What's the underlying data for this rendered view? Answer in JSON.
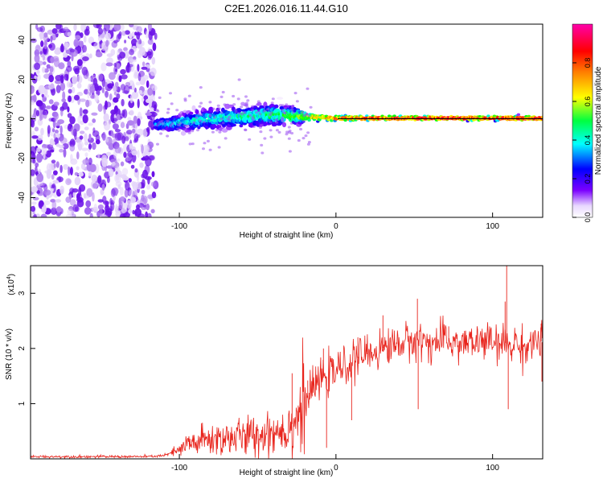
{
  "figure_title": "C2E1.2026.016.11.44.G10",
  "chart_data": [
    {
      "type": "heatmap",
      "name": "spectrogram",
      "title": "C2E1.2026.016.11.44.G10",
      "xlabel": "Height of straight line (km)",
      "ylabel": "Frequency (Hz)",
      "xlim": [
        -195,
        132
      ],
      "ylim": [
        -50,
        48
      ],
      "xticks": [
        -100,
        0,
        100
      ],
      "xtick_labels": [
        "-100",
        "0",
        "100"
      ],
      "yticks": [
        -40,
        -20,
        0,
        20,
        40
      ],
      "ytick_labels": [
        "-40",
        "-20",
        "0",
        "20",
        "40"
      ],
      "noise_region": {
        "x_range": [
          -195,
          -115
        ],
        "y_range": [
          -50,
          48
        ],
        "amplitude": 0.18
      },
      "signal_ridge": [
        {
          "x": -115,
          "center_hz": -3,
          "spread_hz": 2.0,
          "amplitude": 0.35
        },
        {
          "x": -100,
          "center_hz": -2,
          "spread_hz": 3.0,
          "amplitude": 0.4
        },
        {
          "x": -80,
          "center_hz": 0,
          "spread_hz": 4.0,
          "amplitude": 0.42
        },
        {
          "x": -60,
          "center_hz": 1,
          "spread_hz": 4.0,
          "amplitude": 0.45
        },
        {
          "x": -40,
          "center_hz": 2,
          "spread_hz": 4.0,
          "amplitude": 0.48
        },
        {
          "x": -25,
          "center_hz": 1.5,
          "spread_hz": 3.0,
          "amplitude": 0.55
        },
        {
          "x": -10,
          "center_hz": 0.5,
          "spread_hz": 1.2,
          "amplitude": 0.75
        },
        {
          "x": 0,
          "center_hz": 0.3,
          "spread_hz": 1.0,
          "amplitude": 0.85
        },
        {
          "x": 20,
          "center_hz": 0.3,
          "spread_hz": 0.8,
          "amplitude": 0.92
        },
        {
          "x": 60,
          "center_hz": 0.3,
          "spread_hz": 0.8,
          "amplitude": 0.95
        },
        {
          "x": 100,
          "center_hz": 0.3,
          "spread_hz": 0.8,
          "amplitude": 0.95
        },
        {
          "x": 132,
          "center_hz": 0.3,
          "spread_hz": 0.8,
          "amplitude": 0.95
        }
      ],
      "colorbar": {
        "label": "Normalized spectral amplitude",
        "range": [
          0,
          1
        ],
        "ticks": [
          0.0,
          0.2,
          0.4,
          0.6,
          0.8
        ],
        "tick_labels": [
          "0.0",
          "0.2",
          "0.4",
          "0.6",
          "0.8"
        ],
        "colormap": [
          "#ffffff",
          "#7b00ff",
          "#0000ff",
          "#00ffff",
          "#00ff00",
          "#ffff00",
          "#ff8000",
          "#ff0000",
          "#ff00aa"
        ]
      }
    },
    {
      "type": "line",
      "name": "snr",
      "xlabel": "Height of straight line (km)",
      "ylabel": "SNR (10 * v/v)",
      "scale_label": "(x10",
      "scale_exponent": "4",
      "scale_close": ")",
      "xlim": [
        -195,
        132
      ],
      "ylim": [
        0,
        3.5
      ],
      "xticks": [
        -100,
        0,
        100
      ],
      "xtick_labels": [
        "-100",
        "0",
        "100"
      ],
      "yticks": [
        1,
        2,
        3
      ],
      "ytick_labels": [
        "1",
        "2",
        "3"
      ],
      "color": "#e8241c",
      "series": [
        {
          "name": "SNR",
          "x": [
            -195,
            -180,
            -160,
            -140,
            -120,
            -110,
            -100,
            -95,
            -90,
            -80,
            -70,
            -60,
            -50,
            -40,
            -30,
            -25,
            -20,
            -15,
            -10,
            -5,
            0,
            5,
            10,
            15,
            20,
            25,
            30,
            35,
            40,
            45,
            50,
            55,
            60,
            65,
            70,
            75,
            80,
            85,
            90,
            95,
            100,
            105,
            108,
            112,
            115,
            120,
            125,
            130,
            132
          ],
          "y": [
            0.04,
            0.04,
            0.04,
            0.04,
            0.04,
            0.06,
            0.15,
            0.25,
            0.3,
            0.35,
            0.38,
            0.4,
            0.42,
            0.5,
            0.55,
            0.75,
            1.0,
            1.25,
            1.45,
            1.5,
            1.6,
            1.65,
            1.75,
            1.85,
            1.9,
            1.95,
            2.0,
            2.05,
            2.1,
            2.1,
            2.15,
            2.15,
            2.1,
            2.1,
            2.15,
            2.1,
            2.1,
            2.1,
            2.1,
            2.15,
            2.1,
            2.05,
            2.1,
            2.05,
            2.1,
            2.0,
            2.1,
            2.15,
            2.1
          ]
        }
      ],
      "spikes": [
        {
          "x": -28,
          "y": 1.55
        },
        {
          "x": -18,
          "y": 1.42
        },
        {
          "x": -8,
          "y": 2.0
        },
        {
          "x": -6,
          "y": 0.2
        },
        {
          "x": 10,
          "y": 0.7
        },
        {
          "x": 14,
          "y": 2.2
        },
        {
          "x": 30,
          "y": 2.6
        },
        {
          "x": 52,
          "y": 2.9
        },
        {
          "x": 52.5,
          "y": 0.9
        },
        {
          "x": 72,
          "y": 2.4
        },
        {
          "x": 108,
          "y": 2.85
        },
        {
          "x": 109,
          "y": 3.55
        },
        {
          "x": 110,
          "y": 0.9
        },
        {
          "x": 131,
          "y": 2.45
        },
        {
          "x": 131.5,
          "y": 1.4
        }
      ]
    }
  ]
}
